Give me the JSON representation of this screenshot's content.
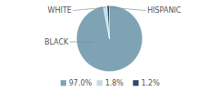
{
  "chart_data": {
    "type": "pie",
    "categories": [
      "BLACK",
      "WHITE",
      "HISPANIC"
    ],
    "values": [
      97.0,
      1.8,
      1.2
    ],
    "value_labels": [
      "97.0%",
      "1.8%",
      "1.2%"
    ],
    "colors": [
      "#7da3b5",
      "#c5d8e0",
      "#2d4a63"
    ],
    "legend": "bottom"
  }
}
